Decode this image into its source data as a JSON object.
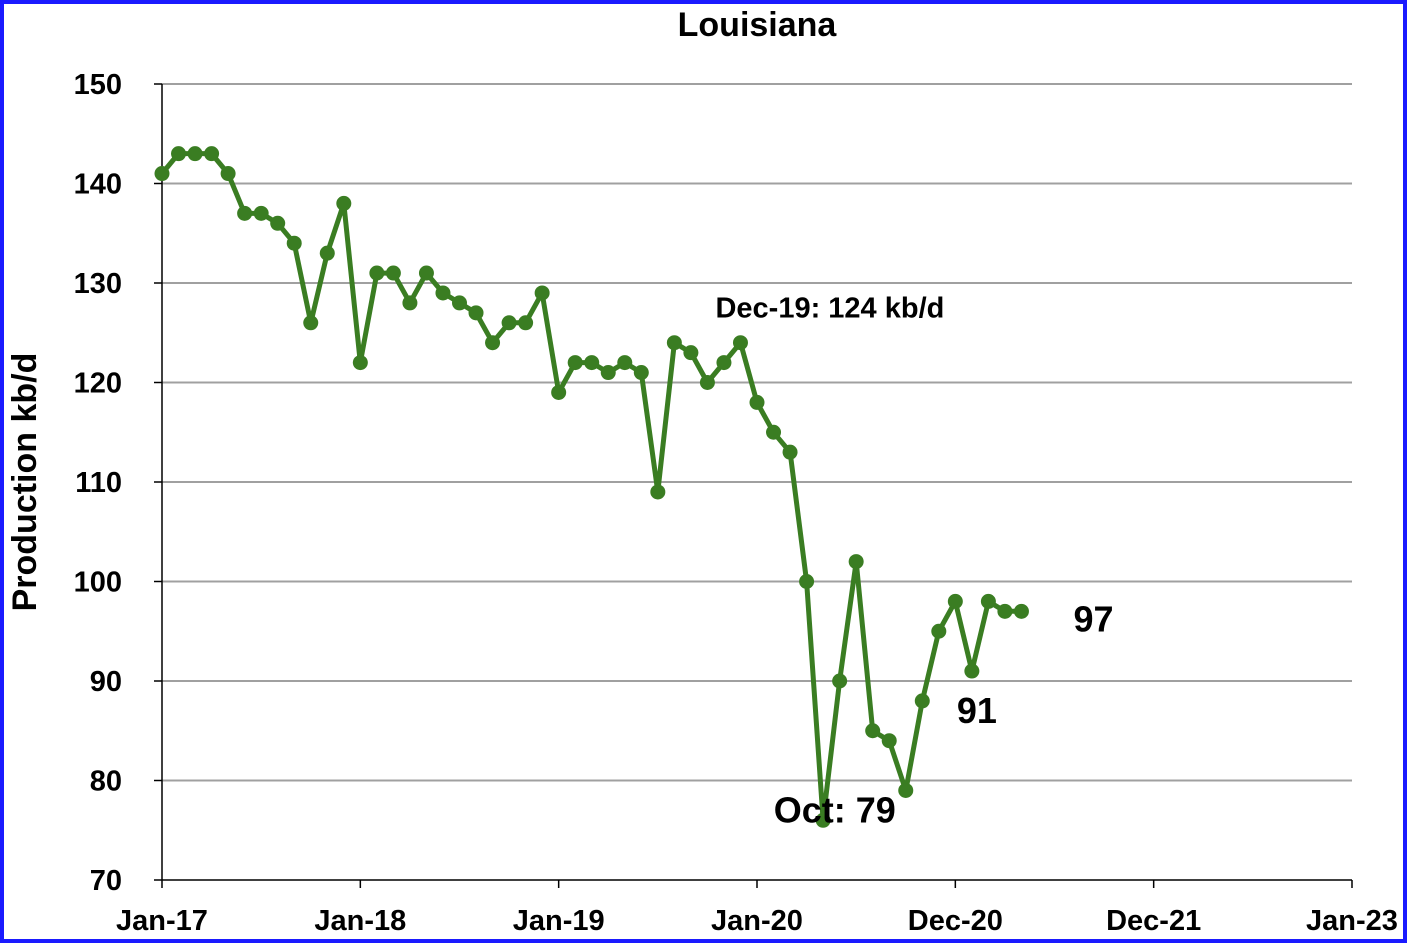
{
  "chart_data": {
    "type": "line",
    "title": "Louisiana",
    "ylabel": "Production kb/d",
    "ylim": [
      70,
      150
    ],
    "yticks": [
      70,
      80,
      90,
      100,
      110,
      120,
      130,
      140,
      150
    ],
    "xlim": [
      "2017-01",
      "2023-01"
    ],
    "xtick_labels": [
      "Jan-17",
      "Jan-18",
      "Jan-19",
      "Jan-20",
      "Dec-20",
      "Dec-21",
      "Jan-23"
    ],
    "grid": "horizontal",
    "colors": {
      "series": "#3a7d22",
      "frame": "#1a1aff",
      "grid": "#a0a0a0"
    },
    "series": [
      {
        "x": [
          "2017-01",
          "2017-02",
          "2017-03",
          "2017-04",
          "2017-05",
          "2017-06",
          "2017-07",
          "2017-08",
          "2017-09",
          "2017-10",
          "2017-11",
          "2017-12",
          "2018-01",
          "2018-02",
          "2018-03",
          "2018-04",
          "2018-05",
          "2018-06",
          "2018-07",
          "2018-08",
          "2018-09",
          "2018-10",
          "2018-11",
          "2018-12",
          "2019-01",
          "2019-02",
          "2019-03",
          "2019-04",
          "2019-05",
          "2019-06",
          "2019-07",
          "2019-08",
          "2019-09",
          "2019-10",
          "2019-11",
          "2019-12",
          "2020-01",
          "2020-02",
          "2020-03",
          "2020-04",
          "2020-05",
          "2020-06",
          "2020-07",
          "2020-08",
          "2020-09",
          "2020-10",
          "2020-11",
          "2020-12",
          "2021-01",
          "2021-02",
          "2021-03",
          "2021-04",
          "2021-05"
        ],
        "values": [
          141,
          143,
          143,
          143,
          141,
          137,
          137,
          136,
          134,
          126,
          133,
          138,
          122,
          131,
          131,
          128,
          131,
          129,
          128,
          127,
          124,
          126,
          126,
          129,
          119,
          122,
          122,
          121,
          122,
          121,
          109,
          124,
          123,
          120,
          122,
          124,
          118,
          115,
          113,
          100,
          76,
          90,
          102,
          85,
          84,
          79,
          88,
          95,
          98,
          91,
          98,
          97,
          97
        ]
      }
    ],
    "annotations": [
      {
        "text": "Dec-19: 124 kb/d",
        "x": "2019-12",
        "y": 124
      },
      {
        "text": "Oct: 79",
        "x": "2020-10",
        "y": 79
      },
      {
        "text": "91",
        "x": "2021-02",
        "y": 91
      },
      {
        "text": "97",
        "x": "2021-05",
        "y": 97
      }
    ]
  }
}
